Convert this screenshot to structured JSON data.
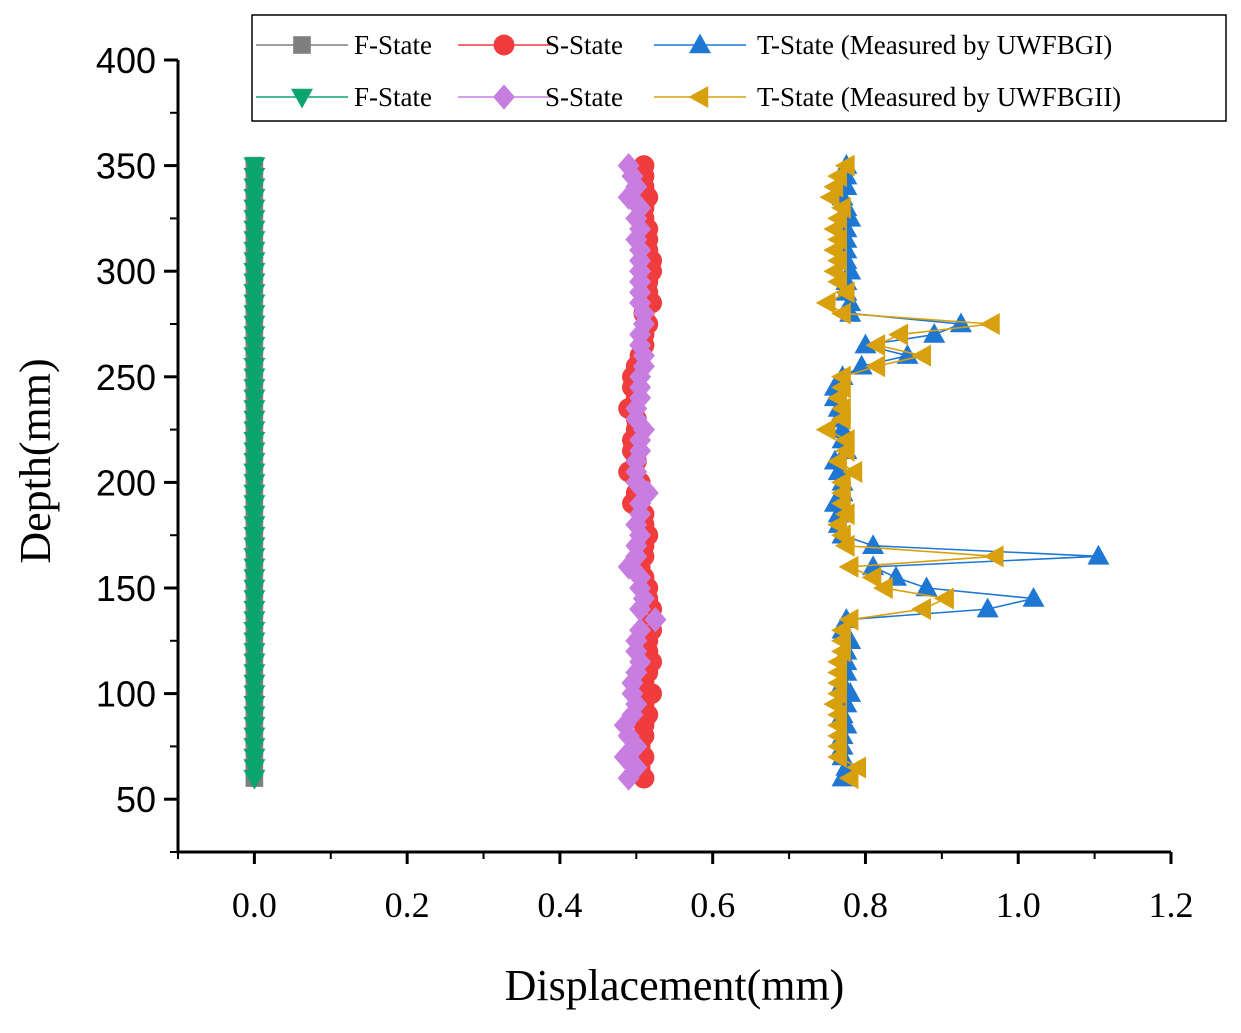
{
  "chart_data": {
    "type": "line",
    "title": "",
    "xlabel": "Displacement(mm)",
    "ylabel": "Depth(mm)",
    "xlim": [
      -0.1,
      1.2
    ],
    "ylim": [
      25,
      400
    ],
    "x_ticks": [
      0.0,
      0.2,
      0.4,
      0.6,
      0.8,
      1.0,
      1.2
    ],
    "x_tick_labels": [
      "0.0",
      "0.2",
      "0.4",
      "0.6",
      "0.8",
      "1.0",
      "1.2"
    ],
    "y_ticks": [
      50,
      100,
      150,
      200,
      250,
      300,
      350,
      400
    ],
    "y_tick_labels": [
      "50",
      "100",
      "150",
      "200",
      "250",
      "300",
      "350",
      "400"
    ],
    "legend_position": "top",
    "depths": [
      60,
      65,
      70,
      75,
      80,
      85,
      90,
      95,
      100,
      105,
      110,
      115,
      120,
      125,
      130,
      135,
      140,
      145,
      150,
      155,
      160,
      165,
      170,
      175,
      180,
      185,
      190,
      195,
      200,
      205,
      210,
      215,
      220,
      225,
      230,
      235,
      240,
      245,
      250,
      255,
      260,
      265,
      270,
      275,
      280,
      285,
      290,
      295,
      300,
      305,
      310,
      315,
      320,
      325,
      330,
      335,
      340,
      345,
      350
    ],
    "series": [
      {
        "name": "F-State",
        "group": "UWFBGI",
        "marker": "square",
        "color": "#7f7f7f",
        "values": [
          0,
          0,
          0,
          0,
          0,
          0,
          0,
          0,
          0,
          0,
          0,
          0,
          0,
          0,
          0,
          0,
          0,
          0,
          0,
          0,
          0,
          0,
          0,
          0,
          0,
          0,
          0,
          0,
          0,
          0,
          0,
          0,
          0,
          0,
          0,
          0,
          0,
          0,
          0,
          0,
          0,
          0,
          0,
          0,
          0,
          0,
          0,
          0,
          0,
          0,
          0,
          0,
          0,
          0,
          0,
          0,
          0,
          0,
          0
        ]
      },
      {
        "name": "S-State",
        "group": "UWFBGI",
        "marker": "circle",
        "color": "#f03c3c",
        "values": [
          0.51,
          0.505,
          0.51,
          0.505,
          0.51,
          0.51,
          0.515,
          0.51,
          0.52,
          0.51,
          0.515,
          0.52,
          0.515,
          0.515,
          0.52,
          0.52,
          0.52,
          0.515,
          0.515,
          0.51,
          0.505,
          0.51,
          0.51,
          0.515,
          0.51,
          0.51,
          0.495,
          0.5,
          0.505,
          0.49,
          0.5,
          0.495,
          0.495,
          0.5,
          0.5,
          0.49,
          0.5,
          0.495,
          0.495,
          0.5,
          0.505,
          0.51,
          0.51,
          0.515,
          0.51,
          0.52,
          0.515,
          0.515,
          0.52,
          0.52,
          0.515,
          0.515,
          0.515,
          0.51,
          0.51,
          0.515,
          0.51,
          0.51,
          0.51
        ]
      },
      {
        "name": "T-State (Measured by UWFBGI)",
        "group": "UWFBGI",
        "marker": "triangle-up",
        "color": "#1f77d4",
        "values": [
          0.77,
          0.775,
          0.77,
          0.77,
          0.77,
          0.775,
          0.77,
          0.775,
          0.78,
          0.77,
          0.775,
          0.775,
          0.775,
          0.78,
          0.77,
          0.775,
          0.96,
          1.02,
          0.88,
          0.84,
          0.81,
          1.105,
          0.81,
          0.77,
          0.765,
          0.765,
          0.76,
          0.77,
          0.77,
          0.765,
          0.76,
          0.775,
          0.77,
          0.77,
          0.765,
          0.765,
          0.76,
          0.76,
          0.77,
          0.795,
          0.855,
          0.8,
          0.89,
          0.925,
          0.78,
          0.78,
          0.775,
          0.775,
          0.78,
          0.775,
          0.775,
          0.775,
          0.775,
          0.78,
          0.775,
          0.77,
          0.775,
          0.775,
          0.775
        ]
      },
      {
        "name": "F-State",
        "group": "UWFBGII",
        "marker": "triangle-down",
        "color": "#0aa56e",
        "values": [
          0,
          0,
          0,
          0,
          0,
          0,
          0,
          0,
          0,
          0,
          0,
          0,
          0,
          0,
          0,
          0,
          0,
          0,
          0,
          0,
          0,
          0,
          0,
          0,
          0,
          0,
          0,
          0,
          0,
          0,
          0,
          0,
          0,
          0,
          0,
          0,
          0,
          0,
          0,
          0,
          0,
          0,
          0,
          0,
          0,
          0,
          0,
          0,
          0,
          0,
          0,
          0,
          0,
          0,
          0,
          0,
          0,
          0,
          0
        ]
      },
      {
        "name": "S-State",
        "group": "UWFBGII",
        "marker": "diamond",
        "color": "#c77ee0",
        "values": [
          0.49,
          0.5,
          0.485,
          0.5,
          0.49,
          0.485,
          0.495,
          0.5,
          0.495,
          0.495,
          0.5,
          0.505,
          0.5,
          0.5,
          0.505,
          0.525,
          0.505,
          0.51,
          0.505,
          0.505,
          0.49,
          0.5,
          0.5,
          0.505,
          0.5,
          0.505,
          0.505,
          0.515,
          0.5,
          0.5,
          0.5,
          0.505,
          0.505,
          0.51,
          0.5,
          0.5,
          0.505,
          0.505,
          0.505,
          0.51,
          0.51,
          0.505,
          0.505,
          0.51,
          0.51,
          0.505,
          0.505,
          0.505,
          0.505,
          0.505,
          0.505,
          0.5,
          0.505,
          0.5,
          0.505,
          0.49,
          0.5,
          0.495,
          0.49
        ]
      },
      {
        "name": "T-State (Measured by UWFBGII)",
        "group": "UWFBGII",
        "marker": "triangle-left",
        "color": "#d9a00e",
        "values": [
          0.78,
          0.79,
          0.765,
          0.765,
          0.765,
          0.765,
          0.765,
          0.76,
          0.765,
          0.765,
          0.765,
          0.765,
          0.77,
          0.77,
          0.77,
          0.78,
          0.875,
          0.905,
          0.825,
          0.81,
          0.78,
          0.97,
          0.775,
          0.77,
          0.765,
          0.775,
          0.77,
          0.77,
          0.77,
          0.785,
          0.765,
          0.775,
          0.775,
          0.75,
          0.77,
          0.77,
          0.765,
          0.77,
          0.77,
          0.815,
          0.875,
          0.815,
          0.845,
          0.965,
          0.77,
          0.75,
          0.775,
          0.765,
          0.76,
          0.765,
          0.76,
          0.765,
          0.76,
          0.765,
          0.77,
          0.755,
          0.76,
          0.765,
          0.775
        ]
      }
    ]
  }
}
